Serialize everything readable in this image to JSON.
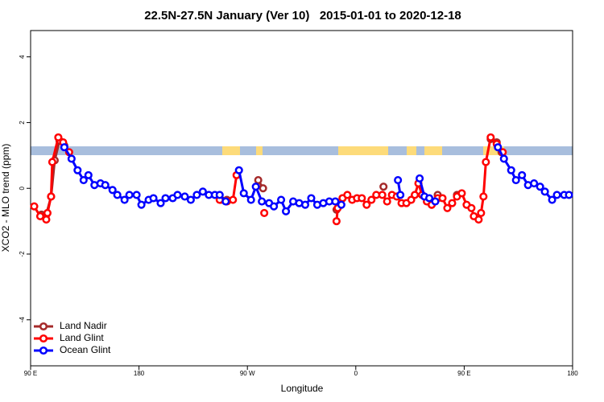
{
  "chart_data": {
    "type": "line",
    "title": "22.5N-27.5N January (Ver 10)   2015-01-01 to 2020-12-18",
    "x_label": "Longitude",
    "y_label": "XCO2 - MLO trend (ppm)",
    "xlim": [
      90,
      540
    ],
    "ylim": [
      -5.4,
      4.8
    ],
    "xticks": [
      {
        "value": 90,
        "label": "90 E"
      },
      180,
      {
        "value": 270,
        "label": "90 W"
      },
      {
        "value": 360,
        "label": "0"
      },
      {
        "value": 450,
        "label": "90 E"
      },
      {
        "value": 540,
        "label": "180"
      }
    ],
    "yticks": [
      -4,
      -2,
      0,
      2,
      4
    ],
    "legend": "bottomleft",
    "series": [
      {
        "name": "Land Nadir",
        "color": "#a52a2a",
        "x": [
          99,
          103,
          107,
          110,
          114,
          118,
          null,
          248,
          253,
          null,
          279,
          283,
          null,
          344,
          349,
          null,
          383,
          null,
          423,
          428,
          null,
          444,
          null,
          472,
          477,
          481
        ],
        "values": [
          -0.8,
          -0.8,
          -0.25,
          0.85,
          1.45,
          1.3,
          null,
          -0.35,
          -0.35,
          null,
          0.25,
          0.0,
          null,
          -0.65,
          -0.3,
          null,
          0.05,
          null,
          -0.5,
          -0.2,
          null,
          -0.2,
          null,
          1.5,
          1.4,
          1.1
        ]
      },
      {
        "name": "Land Glint",
        "color": "#ff0000",
        "x": [
          93,
          98,
          103,
          104,
          107,
          108,
          113,
          117,
          122,
          null,
          247,
          253,
          258,
          261,
          null,
          284,
          null,
          344,
          345,
          349,
          353,
          357,
          361,
          365,
          369,
          373,
          377,
          382,
          386,
          390,
          394,
          398,
          402,
          406,
          409,
          412,
          415,
          419,
          423,
          428,
          432,
          436,
          440,
          444,
          448,
          452,
          456,
          458,
          462,
          464,
          466,
          468,
          472,
          477,
          482
        ],
        "values": [
          -0.55,
          -0.85,
          -0.95,
          -0.75,
          -0.25,
          0.8,
          1.55,
          1.4,
          1.1,
          null,
          -0.35,
          -0.4,
          -0.35,
          0.4,
          null,
          -0.75,
          null,
          -1.0,
          -0.6,
          -0.3,
          -0.2,
          -0.35,
          -0.3,
          -0.3,
          -0.5,
          -0.35,
          -0.2,
          -0.2,
          -0.4,
          -0.2,
          -0.25,
          -0.45,
          -0.45,
          -0.35,
          -0.2,
          0.15,
          -0.2,
          -0.4,
          -0.5,
          -0.3,
          -0.3,
          -0.6,
          -0.45,
          -0.25,
          -0.15,
          -0.5,
          -0.6,
          -0.85,
          -0.95,
          -0.75,
          -0.25,
          0.8,
          1.55,
          1.35,
          1.1
        ]
      },
      {
        "name": "Ocean Glint",
        "color": "#0000ff",
        "x": [
          118,
          124,
          129,
          134,
          138,
          143,
          148,
          152,
          158,
          162,
          168,
          172,
          178,
          182,
          188,
          192,
          198,
          202,
          208,
          212,
          218,
          223,
          228,
          233,
          238,
          243,
          247,
          252,
          null,
          263,
          267,
          273,
          277,
          282,
          288,
          292,
          298,
          302,
          308,
          313,
          318,
          323,
          328,
          333,
          338,
          343,
          348,
          null,
          395,
          397,
          null,
          413,
          417,
          421,
          426,
          null,
          478,
          483,
          489,
          493,
          498,
          503,
          508,
          513,
          517,
          523,
          527,
          533,
          537
        ],
        "values": [
          1.25,
          0.9,
          0.55,
          0.25,
          0.4,
          0.1,
          0.15,
          0.1,
          -0.05,
          -0.2,
          -0.35,
          -0.2,
          -0.2,
          -0.5,
          -0.35,
          -0.3,
          -0.45,
          -0.3,
          -0.3,
          -0.2,
          -0.25,
          -0.35,
          -0.2,
          -0.1,
          -0.2,
          -0.2,
          -0.2,
          -0.4,
          null,
          0.55,
          -0.15,
          -0.35,
          0.05,
          -0.4,
          -0.45,
          -0.55,
          -0.35,
          -0.7,
          -0.4,
          -0.45,
          -0.5,
          -0.3,
          -0.5,
          -0.45,
          -0.4,
          -0.4,
          -0.5,
          null,
          0.25,
          -0.2,
          null,
          0.3,
          -0.25,
          -0.3,
          -0.4,
          null,
          1.25,
          0.9,
          0.55,
          0.25,
          0.4,
          0.1,
          0.15,
          0.05,
          -0.1,
          -0.35,
          -0.2,
          -0.2,
          -0.2
        ]
      }
    ]
  }
}
